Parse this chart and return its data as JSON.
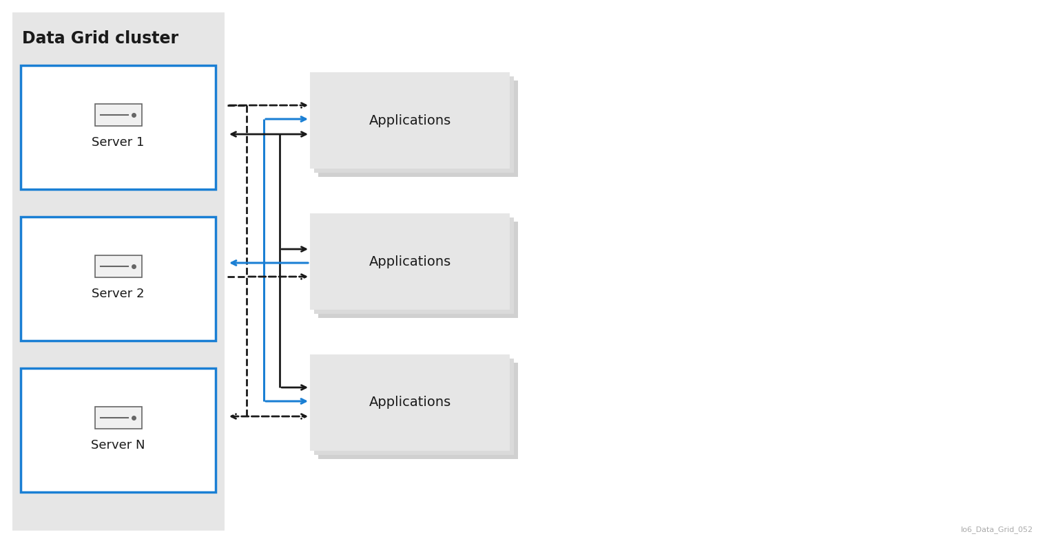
{
  "bg_color": "#ffffff",
  "cluster_bg": "#e6e6e6",
  "cluster_label": "Data Grid cluster",
  "server_border_color": "#1a7fd4",
  "server_fill": "#ffffff",
  "app_fill": "#e6e6e6",
  "app_shadow1": "#d0d0d0",
  "app_shadow2": "#dadada",
  "arrow_black": "#1a1a1a",
  "arrow_blue": "#1a7fd4",
  "watermark": "Io6_Data_Grid_052",
  "servers": [
    {
      "label": "Server 1",
      "row": 0
    },
    {
      "label": "Server 2",
      "row": 1
    },
    {
      "label": "Server N",
      "row": 2
    }
  ],
  "apps": [
    {
      "label": "Applications",
      "row": 0
    },
    {
      "label": "Applications",
      "row": 1
    },
    {
      "label": "Applications",
      "row": 2
    }
  ]
}
